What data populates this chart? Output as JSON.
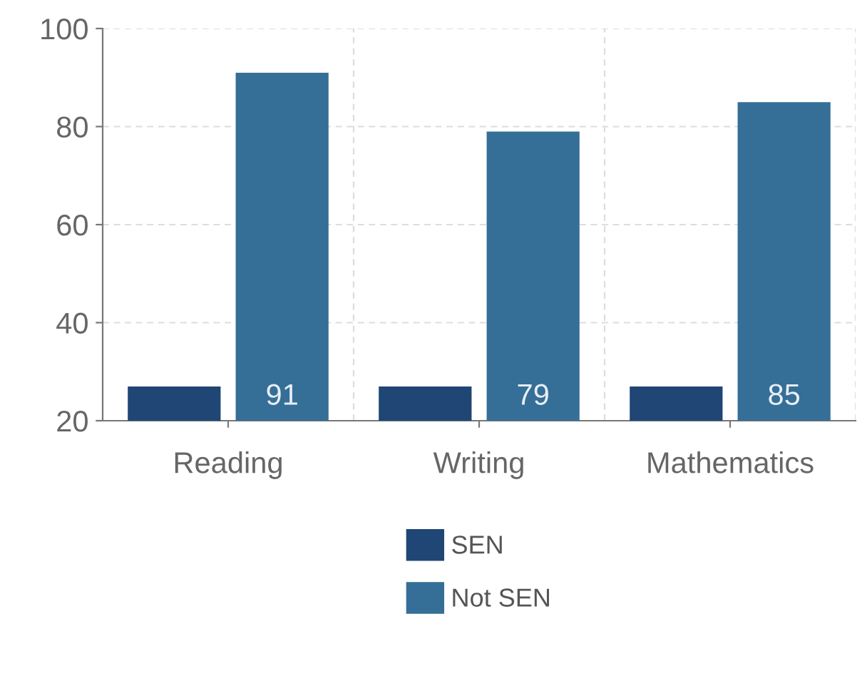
{
  "chart_data": {
    "type": "bar",
    "categories": [
      "Reading",
      "Writing",
      "Mathematics"
    ],
    "series": [
      {
        "name": "SEN",
        "color": "#1f4674",
        "values": [
          27,
          27,
          27
        ]
      },
      {
        "name": "Not SEN",
        "color": "#356f97",
        "values": [
          91,
          79,
          85
        ],
        "value_labels": [
          "91",
          "79",
          "85"
        ]
      }
    ],
    "ylim": [
      20,
      100
    ],
    "yticks": [
      20,
      40,
      60,
      80,
      100
    ],
    "grid": true,
    "legend": "bottom"
  }
}
